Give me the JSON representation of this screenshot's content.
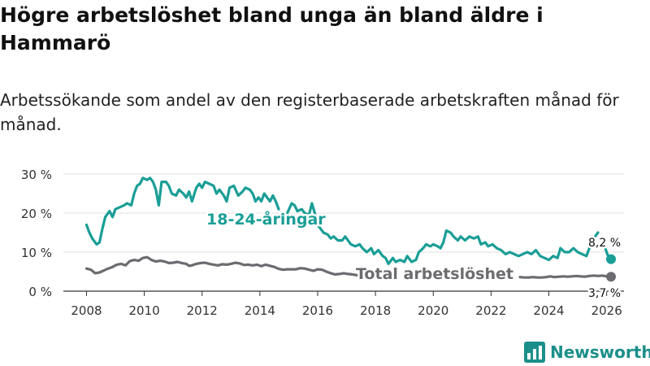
{
  "title": "Högre arbetslöshet bland unga än bland äldre i Hammarö",
  "subtitle": "Arbetssökande som andel av den registerbaserade arbetskraften månad för månad.",
  "brand": {
    "name": "Newsworthy",
    "icon": "bar-chart-logo-icon",
    "color": "#1b8f8a"
  },
  "chart_data": {
    "type": "line",
    "title": "Högre arbetslöshet bland unga än bland äldre i Hammarö",
    "subtitle": "Arbetssökande som andel av den registerbaserade arbetskraften månad för månad.",
    "xlabel": "",
    "ylabel": "",
    "xlim": [
      2007.2,
      2026.6
    ],
    "ylim": [
      0,
      32
    ],
    "yticks": [
      0,
      10,
      20,
      30
    ],
    "ytick_labels": [
      "0 %",
      "10 %",
      "20 %",
      "30 %"
    ],
    "xticks": [
      2008,
      2010,
      2012,
      2014,
      2016,
      2018,
      2020,
      2022,
      2024,
      2026
    ],
    "xtick_labels": [
      "2008",
      "2010",
      "2012",
      "2014",
      "2016",
      "2018",
      "2020",
      "2022",
      "2024",
      "2026"
    ],
    "grid": true,
    "series": [
      {
        "name": "18-24-åringar",
        "label": "18-24-åringar",
        "color": "#1a9e96",
        "end_label": "8,2 %",
        "segments": [
          {
            "points": [
              [
                2008.0,
                17
              ],
              [
                2008.1,
                15
              ],
              [
                2008.2,
                13.5
              ],
              [
                2008.35,
                12
              ],
              [
                2008.45,
                12.5
              ],
              [
                2008.55,
                16
              ],
              [
                2008.65,
                19
              ],
              [
                2008.8,
                20.5
              ],
              [
                2008.9,
                19
              ],
              [
                2009.0,
                21
              ],
              [
                2009.15,
                21.5
              ],
              [
                2009.3,
                22
              ],
              [
                2009.4,
                22.5
              ],
              [
                2009.55,
                22
              ],
              [
                2009.65,
                25
              ],
              [
                2009.75,
                27
              ],
              [
                2009.85,
                27.5
              ],
              [
                2009.95,
                29
              ],
              [
                2010.1,
                28.5
              ],
              [
                2010.2,
                29
              ],
              [
                2010.3,
                28
              ],
              [
                2010.4,
                26
              ],
              [
                2010.5,
                22
              ],
              [
                2010.6,
                28
              ],
              [
                2010.75,
                28
              ],
              [
                2010.85,
                27
              ],
              [
                2010.95,
                25
              ],
              [
                2011.1,
                24.5
              ],
              [
                2011.2,
                26
              ],
              [
                2011.35,
                25
              ],
              [
                2011.45,
                24
              ],
              [
                2011.55,
                25.5
              ],
              [
                2011.65,
                23
              ],
              [
                2011.8,
                26.5
              ],
              [
                2011.9,
                27.5
              ],
              [
                2012.0,
                26.5
              ],
              [
                2012.1,
                28
              ],
              [
                2012.25,
                27.5
              ],
              [
                2012.4,
                27
              ],
              [
                2012.5,
                25
              ],
              [
                2012.6,
                26
              ],
              [
                2012.75,
                24.5
              ],
              [
                2012.85,
                23
              ],
              [
                2012.95,
                26.5
              ],
              [
                2013.1,
                27
              ],
              [
                2013.25,
                24.5
              ],
              [
                2013.4,
                25.5
              ],
              [
                2013.5,
                26.5
              ],
              [
                2013.65,
                26
              ],
              [
                2013.75,
                25
              ],
              [
                2013.85,
                23
              ],
              [
                2013.95,
                24
              ],
              [
                2014.05,
                23
              ],
              [
                2014.15,
                25
              ],
              [
                2014.25,
                24
              ],
              [
                2014.35,
                23
              ],
              [
                2014.45,
                24.5
              ],
              [
                2014.55,
                23
              ],
              [
                2014.65,
                21
              ]
            ]
          },
          {
            "points": [
              [
                2014.95,
                20
              ],
              [
                2015.1,
                22.5
              ],
              [
                2015.2,
                22
              ],
              [
                2015.3,
                20.5
              ],
              [
                2015.45,
                21
              ],
              [
                2015.55,
                20
              ],
              [
                2015.7,
                19.5
              ],
              [
                2015.8,
                22.5
              ],
              [
                2015.9,
                20
              ],
              [
                2016.0,
                17
              ],
              [
                2016.1,
                16
              ],
              [
                2016.2,
                15
              ],
              [
                2016.35,
                14.5
              ],
              [
                2016.45,
                13.5
              ],
              [
                2016.55,
                14
              ],
              [
                2016.7,
                13
              ],
              [
                2016.85,
                13
              ],
              [
                2016.95,
                14
              ],
              [
                2017.05,
                13
              ],
              [
                2017.15,
                12
              ],
              [
                2017.3,
                11.5
              ],
              [
                2017.45,
                12
              ],
              [
                2017.55,
                11
              ],
              [
                2017.7,
                10
              ],
              [
                2017.85,
                11
              ],
              [
                2017.95,
                9.5
              ],
              [
                2018.1,
                10.5
              ],
              [
                2018.25,
                9
              ],
              [
                2018.35,
                8.5
              ],
              [
                2018.45,
                7
              ],
              [
                2018.6,
                8.5
              ],
              [
                2018.7,
                7.5
              ],
              [
                2018.85,
                8
              ],
              [
                2019.0,
                7.5
              ],
              [
                2019.1,
                9
              ],
              [
                2019.25,
                7.5
              ],
              [
                2019.4,
                8
              ],
              [
                2019.5,
                10
              ],
              [
                2019.65,
                11
              ],
              [
                2019.75,
                12
              ],
              [
                2019.9,
                11.5
              ],
              [
                2020.0,
                12
              ],
              [
                2020.15,
                11.5
              ],
              [
                2020.25,
                11
              ],
              [
                2020.35,
                12.5
              ],
              [
                2020.45,
                15.5
              ],
              [
                2020.6,
                15
              ],
              [
                2020.7,
                14
              ],
              [
                2020.85,
                13
              ],
              [
                2020.95,
                14
              ],
              [
                2021.1,
                13
              ],
              [
                2021.25,
                14
              ],
              [
                2021.4,
                13.5
              ],
              [
                2021.55,
                14
              ],
              [
                2021.65,
                12
              ],
              [
                2021.8,
                12.5
              ],
              [
                2021.9,
                11.5
              ],
              [
                2022.05,
                12
              ],
              [
                2022.2,
                11
              ],
              [
                2022.35,
                10.5
              ],
              [
                2022.5,
                9.5
              ],
              [
                2022.65,
                10
              ],
              [
                2022.8,
                9.5
              ],
              [
                2022.95,
                9
              ],
              [
                2023.1,
                9.5
              ],
              [
                2023.25,
                10
              ],
              [
                2023.4,
                9.5
              ],
              [
                2023.55,
                10.5
              ],
              [
                2023.7,
                9
              ],
              [
                2023.85,
                8.5
              ],
              [
                2024.0,
                8
              ],
              [
                2024.15,
                9
              ],
              [
                2024.3,
                8.5
              ],
              [
                2024.4,
                11
              ],
              [
                2024.55,
                10
              ],
              [
                2024.7,
                10
              ],
              [
                2024.85,
                11
              ],
              [
                2025.0,
                10
              ],
              [
                2025.15,
                9.5
              ],
              [
                2025.3,
                9
              ],
              [
                2025.45,
                12
              ],
              [
                2025.6,
                14
              ],
              [
                2025.7,
                15
              ]
            ]
          },
          {
            "points": [
              [
                2025.95,
                11
              ],
              [
                2026.05,
                9
              ],
              [
                2026.15,
                8.2
              ]
            ]
          }
        ]
      },
      {
        "name": "Total arbetslöshet",
        "label": "Total arbetslöshet",
        "color": "#6b6b70",
        "end_label": "3,7 %",
        "segments": [
          {
            "points": [
              [
                2008.0,
                5.8
              ],
              [
                2008.15,
                5.5
              ],
              [
                2008.3,
                4.6
              ],
              [
                2008.45,
                4.8
              ],
              [
                2008.6,
                5.3
              ],
              [
                2008.75,
                5.8
              ],
              [
                2008.9,
                6.2
              ],
              [
                2009.05,
                6.8
              ],
              [
                2009.2,
                7
              ],
              [
                2009.35,
                6.6
              ],
              [
                2009.5,
                7.7
              ],
              [
                2009.65,
                8
              ],
              [
                2009.8,
                7.8
              ],
              [
                2009.95,
                8.5
              ],
              [
                2010.1,
                8.7
              ],
              [
                2010.25,
                8
              ],
              [
                2010.4,
                7.6
              ],
              [
                2010.55,
                7.8
              ],
              [
                2010.7,
                7.6
              ],
              [
                2010.85,
                7.2
              ],
              [
                2011.0,
                7.3
              ],
              [
                2011.15,
                7.5
              ],
              [
                2011.3,
                7.2
              ],
              [
                2011.45,
                7
              ],
              [
                2011.55,
                6.5
              ],
              [
                2011.65,
                6.6
              ],
              [
                2011.8,
                7
              ],
              [
                2011.95,
                7.2
              ],
              [
                2012.1,
                7.3
              ],
              [
                2012.25,
                7
              ],
              [
                2012.4,
                6.8
              ],
              [
                2012.55,
                6.6
              ],
              [
                2012.7,
                6.9
              ],
              [
                2012.85,
                6.8
              ],
              [
                2013.0,
                7
              ],
              [
                2013.15,
                7.3
              ],
              [
                2013.3,
                7.1
              ],
              [
                2013.45,
                6.7
              ],
              [
                2013.6,
                6.8
              ],
              [
                2013.75,
                6.6
              ],
              [
                2013.9,
                6.8
              ],
              [
                2014.05,
                6.4
              ],
              [
                2014.2,
                6.8
              ],
              [
                2014.35,
                6.5
              ],
              [
                2014.5,
                6.2
              ],
              [
                2014.65,
                5.7
              ],
              [
                2014.8,
                5.5
              ],
              [
                2014.95,
                5.6
              ],
              [
                2015.1,
                5.6
              ],
              [
                2015.25,
                5.6
              ],
              [
                2015.4,
                5.9
              ],
              [
                2015.55,
                5.8
              ],
              [
                2015.7,
                5.5
              ],
              [
                2015.85,
                5.2
              ],
              [
                2016.0,
                5.6
              ],
              [
                2016.15,
                5.5
              ],
              [
                2016.3,
                5
              ],
              [
                2016.45,
                4.6
              ],
              [
                2016.6,
                4.3
              ],
              [
                2016.75,
                4.4
              ],
              [
                2016.9,
                4.6
              ],
              [
                2017.05,
                4.4
              ],
              [
                2017.2,
                4.3
              ],
              [
                2017.35,
                4.1
              ],
              [
                2017.5,
                4.0
              ]
            ]
          },
          {
            "points": [
              [
                2023.0,
                3.6
              ],
              [
                2023.15,
                3.5
              ],
              [
                2023.3,
                3.5
              ],
              [
                2023.45,
                3.6
              ],
              [
                2023.6,
                3.5
              ],
              [
                2023.75,
                3.5
              ],
              [
                2023.9,
                3.6
              ],
              [
                2024.05,
                3.8
              ],
              [
                2024.2,
                3.6
              ],
              [
                2024.35,
                3.7
              ],
              [
                2024.5,
                3.8
              ],
              [
                2024.65,
                3.7
              ],
              [
                2024.8,
                3.8
              ],
              [
                2024.95,
                3.9
              ],
              [
                2025.1,
                3.8
              ],
              [
                2025.25,
                3.7
              ],
              [
                2025.4,
                3.9
              ],
              [
                2025.55,
                4.0
              ],
              [
                2025.7,
                3.9
              ],
              [
                2025.85,
                4.0
              ],
              [
                2026.0,
                3.8
              ],
              [
                2026.15,
                3.7
              ]
            ]
          }
        ]
      }
    ]
  }
}
